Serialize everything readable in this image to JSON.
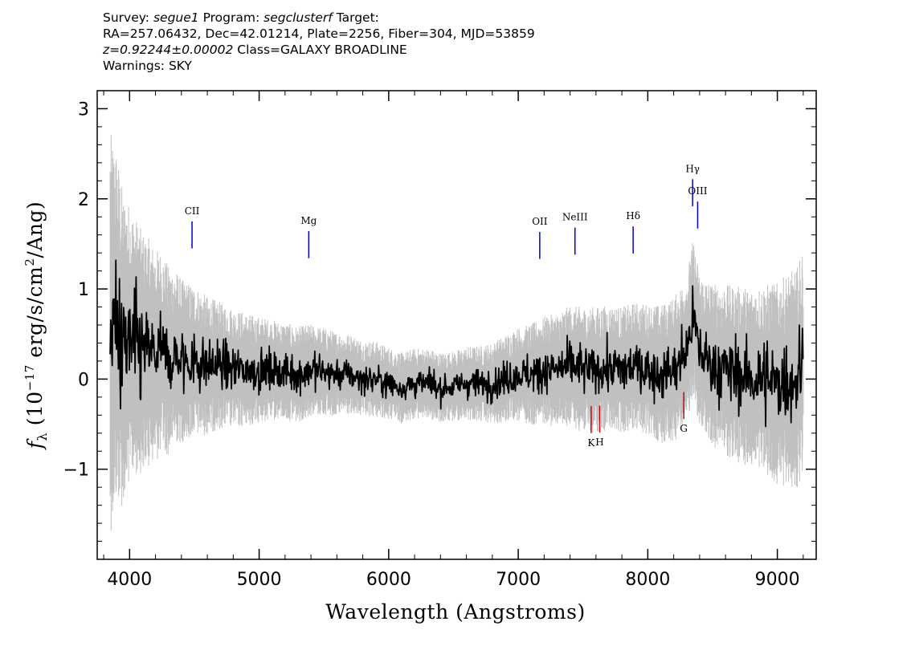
{
  "header": {
    "line1": {
      "survey_label": "Survey:",
      "survey": "segue1",
      "program_label": "Program:",
      "program": "segclusterf",
      "target_label": "Target:"
    },
    "line2": "RA=257.06432, Dec=42.01214, Plate=2256, Fiber=304, MJD=53859",
    "line3": {
      "redshift": "z=0.92244±0.00002",
      "class": "Class=GALAXY BROADLINE"
    },
    "line4": "Warnings: SKY"
  },
  "colors": {
    "flux": "#000000",
    "error": "#c0c0c0",
    "emission": "#0000cc",
    "absorption": "#cc0000"
  },
  "chart_data": {
    "type": "line",
    "xlabel": "Wavelength (Angstroms)",
    "ylabel_parts": {
      "symbol": "f",
      "sub": "λ",
      "open": " (10",
      "exp": "−17",
      "units": " erg/s/cm",
      "exp2": "2",
      "close": "/Ang)"
    },
    "xlim": [
      3750,
      9300
    ],
    "ylim": [
      -2.0,
      3.2
    ],
    "xticks": [
      4000,
      5000,
      6000,
      7000,
      8000,
      9000
    ],
    "xtick_labels": [
      "4000",
      "5000",
      "6000",
      "7000",
      "8000",
      "9000"
    ],
    "yticks": [
      -1,
      0,
      1,
      2,
      3
    ],
    "ytick_labels": [
      "−1",
      "0",
      "1",
      "2",
      "3"
    ],
    "grid": false,
    "series": [
      {
        "role": "flux",
        "x": [
          3850,
          3900,
          3950,
          4000,
          4050,
          4100,
          4150,
          4200,
          4250,
          4300,
          4350,
          4400,
          4450,
          4500,
          4600,
          4700,
          4800,
          4900,
          5000,
          5100,
          5200,
          5300,
          5400,
          5500,
          5600,
          5700,
          5800,
          5900,
          6000,
          6100,
          6200,
          6300,
          6400,
          6500,
          6600,
          6700,
          6800,
          6900,
          7000,
          7100,
          7200,
          7300,
          7400,
          7500,
          7600,
          7700,
          7800,
          7900,
          8000,
          8100,
          8200,
          8300,
          8350,
          8400,
          8500,
          8600,
          8700,
          8800,
          8900,
          9000,
          9100,
          9150,
          9200
        ],
        "y": [
          0.5,
          0.6,
          0.3,
          0.4,
          0.35,
          0.3,
          0.3,
          0.25,
          0.3,
          0.2,
          0.25,
          0.2,
          0.2,
          0.2,
          0.15,
          0.15,
          0.12,
          0.1,
          0.1,
          0.1,
          0.08,
          0.05,
          0.1,
          0.08,
          0.05,
          0.05,
          0.0,
          0.0,
          -0.05,
          -0.1,
          -0.05,
          -0.05,
          -0.1,
          -0.08,
          -0.05,
          -0.05,
          -0.05,
          0.0,
          0.05,
          0.05,
          0.1,
          0.1,
          0.15,
          0.1,
          0.1,
          0.12,
          0.1,
          0.15,
          0.1,
          0.05,
          0.1,
          0.3,
          0.7,
          0.3,
          0.15,
          0.1,
          0.05,
          0.0,
          0.0,
          -0.05,
          0.0,
          0.0,
          0.2
        ]
      },
      {
        "role": "error",
        "x": [
          3850,
          3900,
          4000,
          4100,
          4200,
          4300,
          4400,
          4500,
          4700,
          4900,
          5100,
          5300,
          5500,
          5700,
          5900,
          6100,
          6300,
          6500,
          6700,
          6900,
          7100,
          7300,
          7500,
          7700,
          7900,
          8100,
          8300,
          8500,
          8700,
          8900,
          9100,
          9200
        ],
        "y": [
          1.6,
          1.4,
          1.1,
          0.95,
          0.85,
          0.75,
          0.65,
          0.6,
          0.5,
          0.45,
          0.4,
          0.38,
          0.35,
          0.32,
          0.3,
          0.28,
          0.28,
          0.28,
          0.3,
          0.35,
          0.4,
          0.45,
          0.5,
          0.5,
          0.5,
          0.55,
          0.6,
          0.65,
          0.7,
          0.75,
          0.85,
          0.9
        ]
      }
    ],
    "lines": [
      {
        "label": "CII",
        "x": 4482,
        "kind": "emission"
      },
      {
        "label": "Mg",
        "x": 5383,
        "kind": "emission"
      },
      {
        "label": "OII",
        "x": 7166,
        "kind": "emission"
      },
      {
        "label": "NeIII",
        "x": 7438,
        "kind": "emission"
      },
      {
        "label": "Hδ",
        "x": 7887,
        "kind": "emission"
      },
      {
        "label": "Hγ",
        "x": 8346,
        "kind": "emission"
      },
      {
        "label": "OIII",
        "x": 8385,
        "kind": "emission"
      },
      {
        "label": "K",
        "x": 7563,
        "kind": "absorption"
      },
      {
        "label": "H",
        "x": 7629,
        "kind": "absorption"
      },
      {
        "label": "G",
        "x": 8278,
        "kind": "absorption"
      }
    ]
  }
}
